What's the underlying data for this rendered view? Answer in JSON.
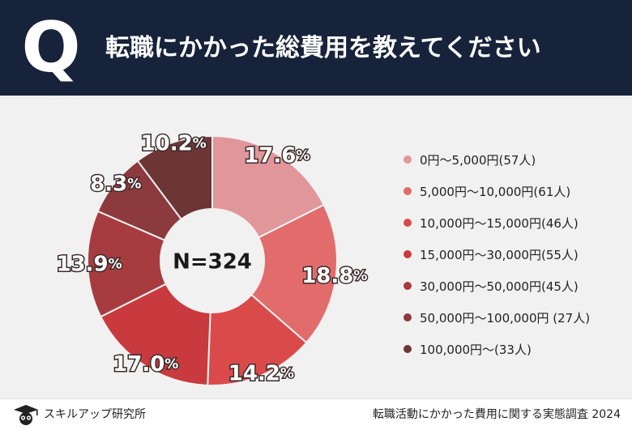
{
  "header": {
    "q_mark": "Q",
    "title": "転職にかかった総費用を教えてください"
  },
  "chart_data": {
    "type": "pie",
    "center_label": "N=324",
    "categories": [
      "0円～5,000円(57人)",
      "5,000円～10,000円(61人)",
      "10,000円～15,000円(46人)",
      "15,000円～30,000円(55人)",
      "30,000円～50,000円(45人)",
      "50,000円～100,000円 (27人)",
      "100,000円～(33人)"
    ],
    "values": [
      17.6,
      18.8,
      14.2,
      17.0,
      13.9,
      8.3,
      10.2
    ],
    "labels": [
      "17.6",
      "18.8",
      "14.2",
      "17.0",
      "13.9",
      "8.3",
      "10.2"
    ],
    "unit": "%",
    "colors": [
      "#e1969a",
      "#e26c6c",
      "#da4a4a",
      "#c83a3e",
      "#a63c40",
      "#8c3a3d",
      "#6e3535"
    ],
    "legend_position": "right"
  },
  "footer": {
    "logo_text": "スキルアップ研究所",
    "source": "転職活動にかかった費用に関する実態調査 2024"
  },
  "colors": {
    "header_bg": "#17233a",
    "panel_bg": "#f1f1f1"
  }
}
